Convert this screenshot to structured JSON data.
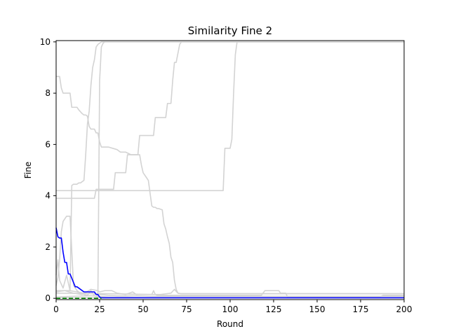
{
  "chart_data": {
    "type": "line",
    "title": "Similarity Fine 2",
    "xlabel": "Round",
    "ylabel": "Fine",
    "xlim": [
      0,
      200
    ],
    "ylim": [
      -0.05,
      10.05
    ],
    "xticks": [
      "0",
      "25",
      "50",
      "75",
      "100",
      "125",
      "150",
      "175",
      "200"
    ],
    "yticks": [
      "0",
      "2",
      "4",
      "6",
      "8",
      "10"
    ],
    "grid": false,
    "legend": "none",
    "colors": {
      "background": "#ffffff",
      "gray": "#d3d3d3",
      "blue": "#0000ff",
      "green": "#008000"
    },
    "series": [
      {
        "color": "#d3d3d3",
        "x": [
          0,
          24,
          25,
          26,
          27,
          28,
          200
        ],
        "y": [
          0.02,
          0.02,
          8.5,
          9.8,
          9.95,
          10.0,
          10.0
        ]
      },
      {
        "color": "#d3d3d3",
        "x": [
          0,
          8,
          9,
          10,
          11,
          12,
          13,
          14,
          16,
          17,
          18,
          19,
          20,
          21,
          22,
          23,
          24,
          25,
          26,
          27,
          200
        ],
        "y": [
          0.3,
          0.3,
          4.4,
          4.45,
          4.45,
          4.45,
          4.5,
          4.5,
          4.6,
          5.6,
          6.8,
          7.3,
          8.3,
          9.0,
          9.3,
          9.8,
          9.9,
          9.95,
          10.0,
          10.0,
          10.0
        ]
      },
      {
        "color": "#d3d3d3",
        "x": [
          0,
          22,
          23,
          33,
          34,
          40,
          41,
          47,
          48,
          56,
          57,
          63,
          64,
          66,
          67,
          68,
          69,
          71,
          72,
          200
        ],
        "y": [
          3.9,
          3.9,
          4.25,
          4.25,
          4.9,
          4.9,
          5.6,
          5.6,
          6.35,
          6.35,
          7.05,
          7.05,
          7.6,
          7.6,
          8.5,
          9.2,
          9.2,
          9.9,
          10.0,
          10.0
        ]
      },
      {
        "color": "#d3d3d3",
        "x": [
          0,
          96,
          97,
          100,
          101,
          102,
          103,
          104,
          200
        ],
        "y": [
          4.2,
          4.2,
          5.85,
          5.85,
          6.2,
          8.0,
          9.5,
          10.0,
          10.0
        ]
      },
      {
        "color": "#d3d3d3",
        "x": [
          0,
          1,
          2,
          3,
          4,
          8,
          9,
          12,
          13,
          15,
          16,
          17,
          18,
          19,
          20,
          21,
          22,
          23,
          24,
          25,
          26,
          27,
          30,
          35,
          37,
          40,
          43,
          44,
          45,
          48,
          49,
          50,
          52,
          53,
          55,
          56,
          57,
          58,
          59,
          61,
          62,
          63,
          64,
          65,
          66,
          67,
          68,
          69,
          70,
          72,
          200
        ],
        "y": [
          8.65,
          8.65,
          8.65,
          8.2,
          8.0,
          8.0,
          7.45,
          7.45,
          7.35,
          7.2,
          7.15,
          7.15,
          7.1,
          6.7,
          6.6,
          6.6,
          6.6,
          6.45,
          6.45,
          6.1,
          5.9,
          5.9,
          5.9,
          5.8,
          5.7,
          5.7,
          5.6,
          5.6,
          5.6,
          5.6,
          5.2,
          4.9,
          4.7,
          4.6,
          3.6,
          3.55,
          3.55,
          3.5,
          3.5,
          3.45,
          2.9,
          2.7,
          2.4,
          2.15,
          1.6,
          1.4,
          0.7,
          0.35,
          0.2,
          0.18,
          0.18
        ]
      },
      {
        "color": "#d3d3d3",
        "x": [
          0,
          1,
          2,
          3,
          4,
          5,
          6,
          8,
          10,
          12,
          14,
          16,
          18,
          20,
          22,
          25,
          200
        ],
        "y": [
          0.5,
          0.8,
          1.5,
          2.6,
          3.0,
          3.1,
          3.2,
          3.2,
          0.5,
          0.3,
          0.2,
          0.15,
          0.12,
          0.3,
          0.1,
          0.02,
          0.02
        ]
      },
      {
        "color": "#d3d3d3",
        "x": [
          0,
          1,
          2,
          4,
          6,
          8,
          12,
          16,
          20,
          25,
          30,
          35,
          40,
          45,
          55,
          200
        ],
        "y": [
          0.9,
          1.5,
          0.7,
          0.4,
          0.9,
          0.3,
          0.25,
          0.2,
          0.18,
          0.15,
          0.12,
          0.1,
          0.1,
          0.1,
          0.08,
          0.08
        ]
      },
      {
        "color": "#d3d3d3",
        "x": [
          0,
          5,
          10,
          15,
          20,
          24,
          25,
          28,
          32,
          35,
          40,
          42,
          44,
          46,
          60,
          66,
          68,
          70,
          72,
          200
        ],
        "y": [
          0.25,
          0.3,
          0.2,
          0.15,
          0.35,
          0.3,
          0.25,
          0.3,
          0.3,
          0.2,
          0.15,
          0.2,
          0.25,
          0.15,
          0.15,
          0.2,
          0.35,
          0.2,
          0.18,
          0.18
        ]
      },
      {
        "color": "#d3d3d3",
        "x": [
          0,
          30,
          55,
          56,
          57,
          58,
          60,
          80,
          118,
          120,
          128,
          129,
          132,
          133,
          186,
          188,
          200
        ],
        "y": [
          0.2,
          0.18,
          0.15,
          0.3,
          0.15,
          0.12,
          0.12,
          0.12,
          0.12,
          0.3,
          0.3,
          0.2,
          0.2,
          0.05,
          0.05,
          0.12,
          0.12
        ]
      },
      {
        "color": "#d3d3d3",
        "x": [
          0,
          10,
          20,
          30,
          40,
          50,
          60,
          200
        ],
        "y": [
          0.05,
          0.08,
          0.1,
          0.05,
          0.05,
          0.03,
          0.03,
          0.03
        ]
      },
      {
        "color": "#0000ff",
        "x": [
          0,
          1,
          2,
          3,
          4,
          5,
          6,
          7,
          8,
          11,
          12,
          16,
          17,
          22,
          23,
          24,
          25,
          26,
          27,
          200
        ],
        "y": [
          2.75,
          2.4,
          2.35,
          2.35,
          1.8,
          1.4,
          1.4,
          0.95,
          0.95,
          0.45,
          0.45,
          0.25,
          0.25,
          0.25,
          0.15,
          0.15,
          0.05,
          0.02,
          0.02,
          0.02
        ]
      },
      {
        "color": "#008000",
        "dashed": true,
        "x": [
          0,
          26
        ],
        "y": [
          0.0,
          0.0
        ]
      }
    ]
  }
}
